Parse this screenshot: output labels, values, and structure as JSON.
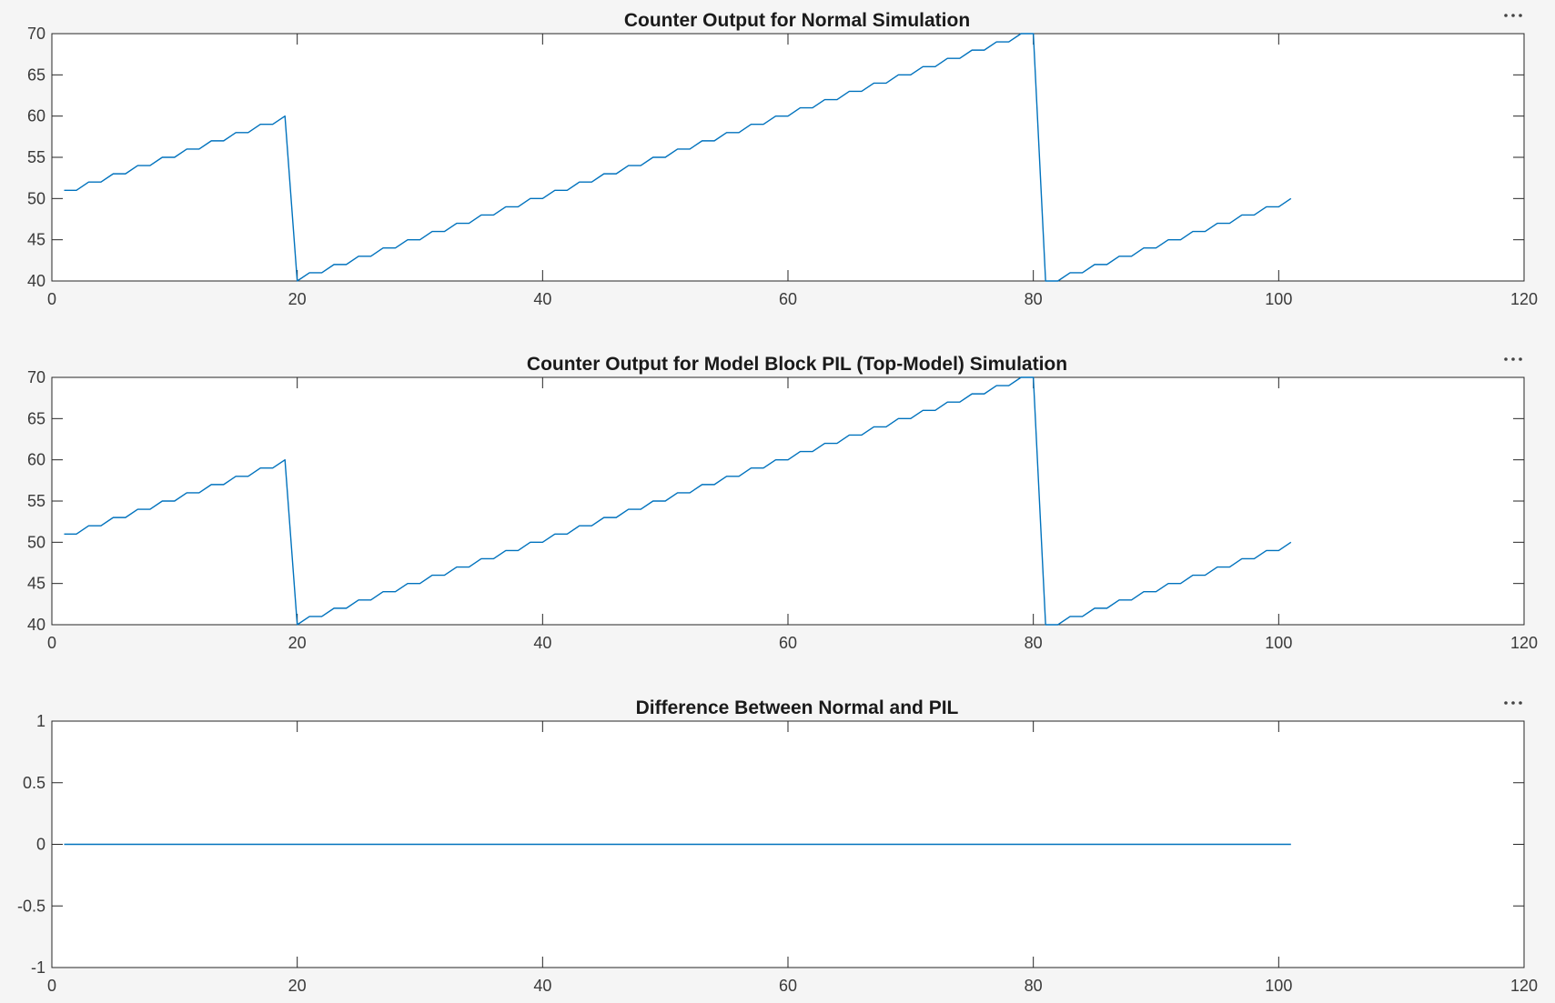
{
  "figure": {
    "background": "#f5f5f5",
    "line_color": "#0072bd",
    "axes_color": "#262626",
    "toolbar_icon": "more-options-icon"
  },
  "chart_data": [
    {
      "type": "line",
      "title": "Counter Output for Normal Simulation",
      "xlabel": "",
      "ylabel": "",
      "xlim": [
        0,
        120
      ],
      "ylim": [
        40,
        70
      ],
      "xticks": [
        "0",
        "20",
        "40",
        "60",
        "80",
        "100",
        "120"
      ],
      "yticks": [
        "40",
        "45",
        "50",
        "55",
        "60",
        "65",
        "70"
      ],
      "grid": false,
      "series": [
        {
          "x": [
            1,
            2,
            3,
            4,
            5,
            6,
            7,
            8,
            9,
            10,
            11,
            12,
            13,
            14,
            15,
            16,
            17,
            18,
            19,
            20,
            21,
            22,
            23,
            24,
            25,
            26,
            27,
            28,
            29,
            30,
            31,
            32,
            33,
            34,
            35,
            36,
            37,
            38,
            39,
            40,
            41,
            42,
            43,
            44,
            45,
            46,
            47,
            48,
            49,
            50,
            51,
            52,
            53,
            54,
            55,
            56,
            57,
            58,
            59,
            60,
            61,
            62,
            63,
            64,
            65,
            66,
            67,
            68,
            69,
            70,
            71,
            72,
            73,
            74,
            75,
            76,
            77,
            78,
            79,
            80,
            81,
            82,
            83,
            84,
            85,
            86,
            87,
            88,
            89,
            90,
            91,
            92,
            93,
            94,
            95,
            96,
            97,
            98,
            99,
            100,
            101
          ],
          "values": [
            51,
            51,
            52,
            52,
            53,
            53,
            54,
            54,
            55,
            55,
            56,
            56,
            57,
            57,
            58,
            58,
            59,
            59,
            60,
            40,
            41,
            41,
            42,
            42,
            43,
            43,
            44,
            44,
            45,
            45,
            46,
            46,
            47,
            47,
            48,
            48,
            49,
            49,
            50,
            50,
            51,
            51,
            52,
            52,
            53,
            53,
            54,
            54,
            55,
            55,
            56,
            56,
            57,
            57,
            58,
            58,
            59,
            59,
            60,
            60,
            61,
            61,
            62,
            62,
            63,
            63,
            64,
            64,
            65,
            65,
            66,
            66,
            67,
            67,
            68,
            68,
            69,
            69,
            70,
            70,
            40,
            40,
            41,
            41,
            42,
            42,
            43,
            43,
            44,
            44,
            45,
            45,
            46,
            46,
            47,
            47,
            48,
            48,
            49,
            49,
            50
          ]
        }
      ]
    },
    {
      "type": "line",
      "title": "Counter Output for Model Block PIL (Top-Model) Simulation",
      "xlabel": "",
      "ylabel": "",
      "xlim": [
        0,
        120
      ],
      "ylim": [
        40,
        70
      ],
      "xticks": [
        "0",
        "20",
        "40",
        "60",
        "80",
        "100",
        "120"
      ],
      "yticks": [
        "40",
        "45",
        "50",
        "55",
        "60",
        "65",
        "70"
      ],
      "grid": false,
      "series": [
        {
          "x": [
            1,
            2,
            3,
            4,
            5,
            6,
            7,
            8,
            9,
            10,
            11,
            12,
            13,
            14,
            15,
            16,
            17,
            18,
            19,
            20,
            21,
            22,
            23,
            24,
            25,
            26,
            27,
            28,
            29,
            30,
            31,
            32,
            33,
            34,
            35,
            36,
            37,
            38,
            39,
            40,
            41,
            42,
            43,
            44,
            45,
            46,
            47,
            48,
            49,
            50,
            51,
            52,
            53,
            54,
            55,
            56,
            57,
            58,
            59,
            60,
            61,
            62,
            63,
            64,
            65,
            66,
            67,
            68,
            69,
            70,
            71,
            72,
            73,
            74,
            75,
            76,
            77,
            78,
            79,
            80,
            81,
            82,
            83,
            84,
            85,
            86,
            87,
            88,
            89,
            90,
            91,
            92,
            93,
            94,
            95,
            96,
            97,
            98,
            99,
            100,
            101
          ],
          "values": [
            51,
            51,
            52,
            52,
            53,
            53,
            54,
            54,
            55,
            55,
            56,
            56,
            57,
            57,
            58,
            58,
            59,
            59,
            60,
            40,
            41,
            41,
            42,
            42,
            43,
            43,
            44,
            44,
            45,
            45,
            46,
            46,
            47,
            47,
            48,
            48,
            49,
            49,
            50,
            50,
            51,
            51,
            52,
            52,
            53,
            53,
            54,
            54,
            55,
            55,
            56,
            56,
            57,
            57,
            58,
            58,
            59,
            59,
            60,
            60,
            61,
            61,
            62,
            62,
            63,
            63,
            64,
            64,
            65,
            65,
            66,
            66,
            67,
            67,
            68,
            68,
            69,
            69,
            70,
            70,
            40,
            40,
            41,
            41,
            42,
            42,
            43,
            43,
            44,
            44,
            45,
            45,
            46,
            46,
            47,
            47,
            48,
            48,
            49,
            49,
            50
          ]
        }
      ]
    },
    {
      "type": "line",
      "title": "Difference Between Normal and PIL",
      "xlabel": "",
      "ylabel": "",
      "xlim": [
        0,
        120
      ],
      "ylim": [
        -1,
        1
      ],
      "xticks": [
        "0",
        "20",
        "40",
        "60",
        "80",
        "100",
        "120"
      ],
      "yticks": [
        "-1",
        "-0.5",
        "0",
        "0.5",
        "1"
      ],
      "grid": false,
      "series": [
        {
          "x": [
            1,
            101
          ],
          "values": [
            0,
            0
          ]
        }
      ]
    }
  ]
}
